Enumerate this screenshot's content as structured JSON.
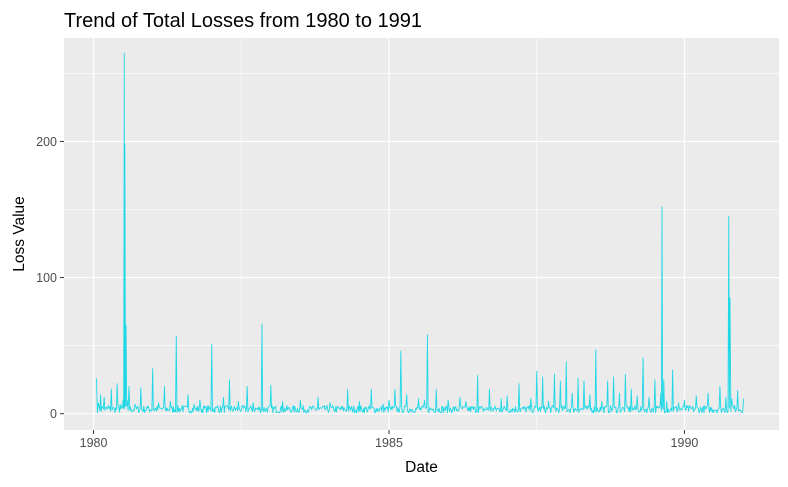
{
  "chart_data": {
    "type": "line",
    "title": "Trend of Total Losses from 1980 to 1991",
    "xlabel": "Date",
    "ylabel": "Loss Value",
    "x_ticks": [
      "1980",
      "1985",
      "1990"
    ],
    "y_ticks": [
      "0",
      "100",
      "200"
    ],
    "xlim": [
      1979.5,
      1991.6
    ],
    "ylim": [
      -12,
      276
    ],
    "grid": true,
    "legend": "none",
    "colors": {
      "series": "#1fd8e6",
      "panel": "#ebebeb",
      "grid": "#ffffff"
    },
    "series": [
      {
        "x": [
          1980.05,
          1980.08,
          1980.12,
          1980.15,
          1980.18,
          1980.25,
          1980.3,
          1980.35,
          1980.4,
          1980.45,
          1980.5,
          1980.52,
          1980.53,
          1980.55,
          1980.57,
          1980.6,
          1980.7,
          1980.8,
          1980.9,
          1981.0,
          1981.1,
          1981.2,
          1981.3,
          1981.4,
          1981.5,
          1981.6,
          1981.7,
          1981.8,
          1981.9,
          1982.0,
          1982.1,
          1982.2,
          1982.3,
          1982.45,
          1982.6,
          1982.7,
          1982.85,
          1983.0,
          1983.2,
          1983.5,
          1983.8,
          1984.0,
          1984.3,
          1984.5,
          1984.7,
          1984.9,
          1985.0,
          1985.1,
          1985.2,
          1985.3,
          1985.5,
          1985.6,
          1985.65,
          1985.8,
          1986.0,
          1986.2,
          1986.3,
          1986.5,
          1986.7,
          1986.9,
          1987.0,
          1987.2,
          1987.4,
          1987.5,
          1987.6,
          1987.7,
          1987.8,
          1987.9,
          1988.0,
          1988.1,
          1988.2,
          1988.3,
          1988.4,
          1988.5,
          1988.6,
          1988.7,
          1988.8,
          1988.9,
          1989.0,
          1989.1,
          1989.2,
          1989.3,
          1989.4,
          1989.5,
          1989.6,
          1989.62,
          1989.65,
          1989.7,
          1989.8,
          1989.9,
          1990.0,
          1990.2,
          1990.4,
          1990.6,
          1990.7,
          1990.75,
          1990.77,
          1990.8,
          1990.85,
          1990.9,
          1991.0
        ],
        "y": [
          26,
          8,
          14,
          5,
          12,
          6,
          18,
          4,
          22,
          7,
          10,
          265,
          198,
          65,
          10,
          20,
          7,
          19,
          5,
          33,
          8,
          20,
          9,
          57,
          6,
          14,
          7,
          10,
          5,
          51,
          6,
          12,
          25,
          9,
          20,
          8,
          66,
          21,
          9,
          10,
          12,
          8,
          18,
          9,
          18,
          7,
          10,
          18,
          46,
          14,
          11,
          10,
          58,
          18,
          10,
          12,
          9,
          28,
          18,
          11,
          13,
          22,
          11,
          31,
          27,
          9,
          29,
          24,
          38,
          15,
          26,
          24,
          14,
          47,
          9,
          24,
          27,
          15,
          29,
          18,
          13,
          41,
          12,
          25,
          15,
          152,
          25,
          9,
          32,
          8,
          10,
          13,
          15,
          20,
          12,
          145,
          85,
          11,
          6,
          17,
          11
        ]
      }
    ]
  }
}
